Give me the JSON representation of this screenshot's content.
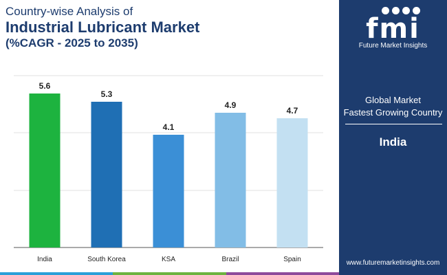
{
  "header": {
    "line1": "Country-wise Analysis of",
    "line2": "Industrial Lubricant Market",
    "line3": "(%CAGR - 2025 to 2035)"
  },
  "chart_data": {
    "type": "bar",
    "title": "Industrial Lubricant Market",
    "categories": [
      "India",
      "South Korea",
      "KSA",
      "Brazil",
      "Spain"
    ],
    "values": [
      5.6,
      5.3,
      4.1,
      4.9,
      4.7
    ],
    "value_labels": [
      "5.6",
      "5.3",
      "4.1",
      "4.9",
      "4.7"
    ],
    "bar_colors": [
      "#1db33f",
      "#1f6fb4",
      "#3b8fd6",
      "#82bde6",
      "#c3e0f2"
    ],
    "xlabel": "",
    "ylabel": "",
    "ylim": [
      0,
      6.25
    ],
    "grid": true,
    "grid_color": "#e2e2e2"
  },
  "sidebar": {
    "logo_text": "fmi",
    "logo_subtitle": "Future Market Insights",
    "label_line1": "Global Market",
    "label_line2": "Fastest Growing Country",
    "country": "India",
    "url": "www.futuremarketinsights.com",
    "background": "#1d3c6e"
  },
  "bottom_bar_colors": [
    "#2a9fd8",
    "#6db33f",
    "#8e4a9b"
  ]
}
